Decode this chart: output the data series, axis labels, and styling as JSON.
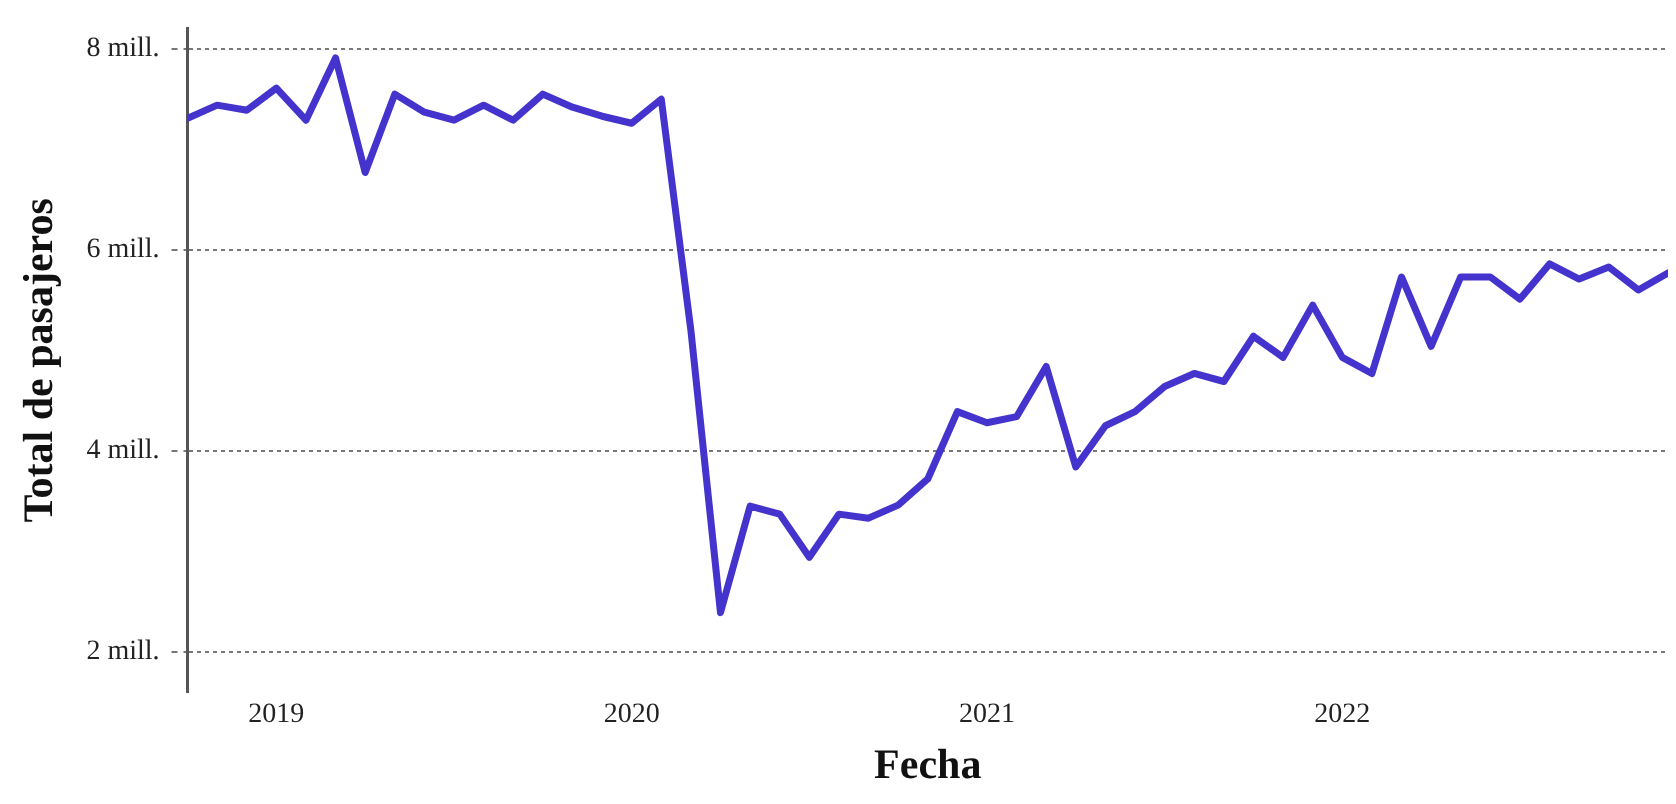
{
  "chart_data": {
    "type": "line",
    "xlabel": "Fecha",
    "ylabel": "Total de pasajeros",
    "x": [
      "2018-10",
      "2018-11",
      "2018-12",
      "2019-01",
      "2019-02",
      "2019-03",
      "2019-04",
      "2019-05",
      "2019-06",
      "2019-07",
      "2019-08",
      "2019-09",
      "2019-10",
      "2019-11",
      "2019-12",
      "2020-01",
      "2020-02",
      "2020-03",
      "2020-04",
      "2020-05",
      "2020-06",
      "2020-07",
      "2020-08",
      "2020-09",
      "2020-10",
      "2020-11",
      "2020-12",
      "2021-01",
      "2021-02",
      "2021-03",
      "2021-04",
      "2021-05",
      "2021-06",
      "2021-07",
      "2021-08",
      "2021-09",
      "2021-10",
      "2021-11",
      "2021-12",
      "2022-01",
      "2022-02",
      "2022-03",
      "2022-04",
      "2022-05",
      "2022-06",
      "2022-07",
      "2022-08",
      "2022-09",
      "2022-10",
      "2022-11",
      "2022-12"
    ],
    "series": [
      {
        "color": "#4433cc",
        "values": [
          7.31,
          7.44,
          7.39,
          7.61,
          7.29,
          7.91,
          6.77,
          7.55,
          7.37,
          7.29,
          7.44,
          7.29,
          7.55,
          7.42,
          7.33,
          7.26,
          7.5,
          5.2,
          2.39,
          3.45,
          3.37,
          2.94,
          3.37,
          3.33,
          3.46,
          3.72,
          4.39,
          4.28,
          4.34,
          4.84,
          3.84,
          4.25,
          4.39,
          4.64,
          4.77,
          4.69,
          5.14,
          4.93,
          5.45,
          4.93,
          4.77,
          5.73,
          5.04,
          5.73,
          5.73,
          5.51,
          5.86,
          5.71,
          5.83,
          5.6,
          5.77
        ]
      }
    ],
    "xlim": [
      "2018-10",
      "2022-12"
    ],
    "xticks": [
      "2019",
      "2020",
      "2021",
      "2022"
    ],
    "ylim": [
      1.6,
      8.2
    ],
    "yticks": [
      {
        "value": 2,
        "label": "2 mill."
      },
      {
        "value": 4,
        "label": "4 mill."
      },
      {
        "value": 6,
        "label": "6 mill."
      },
      {
        "value": 8,
        "label": "8 mill."
      }
    ],
    "grid": "y",
    "legend": false,
    "marker": "none",
    "line_style": "solid"
  }
}
